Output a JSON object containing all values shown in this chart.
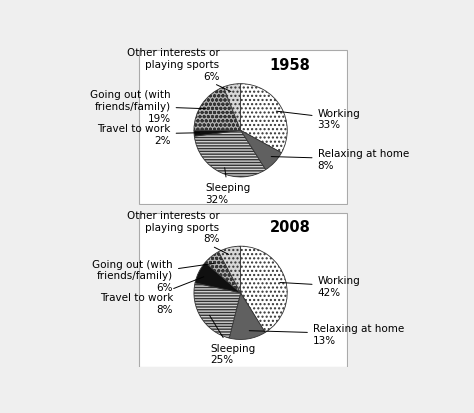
{
  "chart1": {
    "year": "1958",
    "labels": [
      "Working",
      "Relaxing at home",
      "Sleeping",
      "Travel to work",
      "Going out (with\nfriends/family)",
      "Other interests or\nplaying sports"
    ],
    "values": [
      33,
      8,
      32,
      2,
      19,
      6
    ],
    "styles": [
      "dense_dots",
      "dark_gray",
      "h_lines",
      "near_black",
      "light_dots",
      "medium_dots"
    ],
    "label_positions": [
      [
        1.55,
        0.25,
        "left"
      ],
      [
        1.55,
        -0.62,
        "left"
      ],
      [
        -0.85,
        -1.35,
        "left"
      ],
      [
        -1.6,
        -0.08,
        "right"
      ],
      [
        -1.6,
        0.52,
        "right"
      ],
      [
        -0.55,
        1.42,
        "right"
      ]
    ]
  },
  "chart2": {
    "year": "2008",
    "labels": [
      "Working",
      "Relaxing at home",
      "Sleeping",
      "Travel to work",
      "Going out (with\nfriends/family)",
      "Other interests or\nplaying sports"
    ],
    "values": [
      42,
      13,
      25,
      8,
      6,
      8
    ],
    "styles": [
      "dense_dots",
      "dark_gray",
      "h_lines",
      "near_black",
      "light_dots",
      "medium_dots"
    ],
    "label_positions": [
      [
        1.55,
        0.15,
        "left"
      ],
      [
        1.45,
        -0.88,
        "left"
      ],
      [
        -0.75,
        -1.3,
        "left"
      ],
      [
        -1.55,
        -0.22,
        "right"
      ],
      [
        -1.55,
        0.38,
        "right"
      ],
      [
        -0.55,
        1.42,
        "right"
      ]
    ]
  },
  "bg_color": "#efefef",
  "panel_bg": "#ffffff",
  "label_fontsize": 7.5,
  "title_fontsize": 10.5
}
